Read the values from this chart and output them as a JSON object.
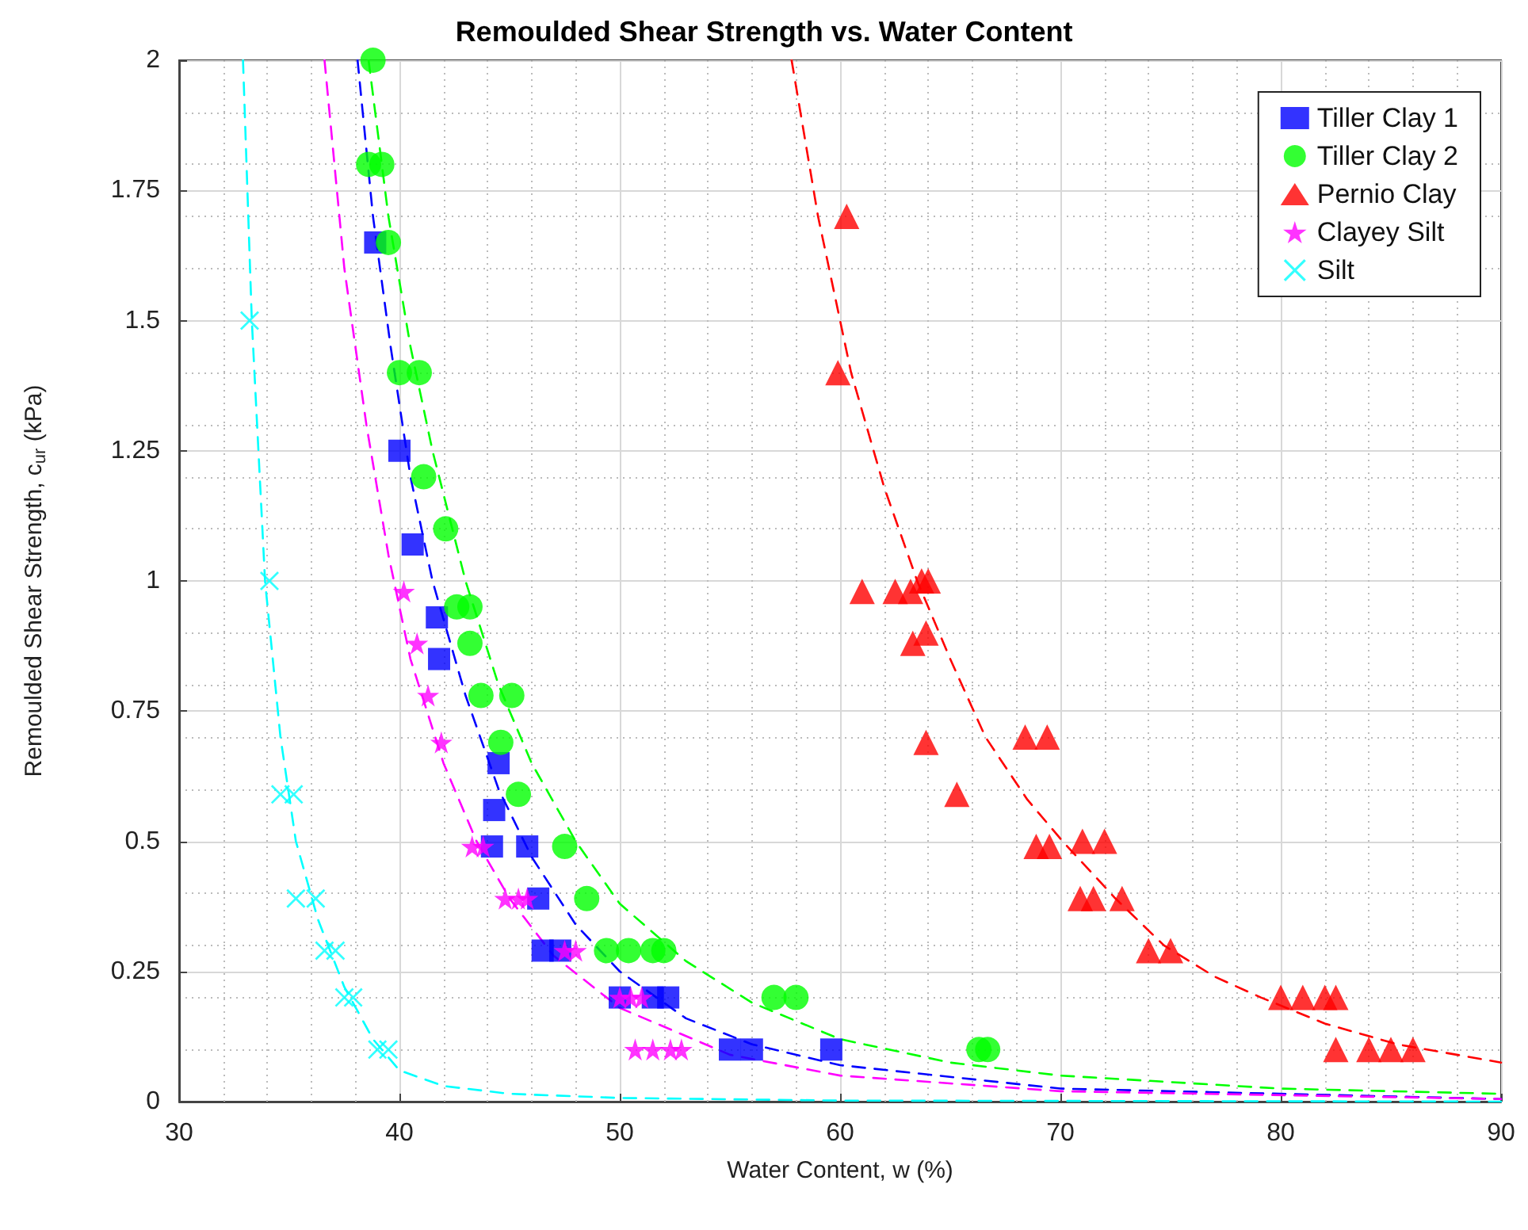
{
  "chart_data": {
    "type": "scatter",
    "title": "Remoulded Shear Strength vs. Water Content",
    "xlabel": "Water Content, w (%)",
    "ylabel": "Remoulded Shear Strength, c$_{ur}$ (kPa)",
    "xlim": [
      30,
      90
    ],
    "xticks": [
      30,
      40,
      50,
      60,
      70,
      80,
      90
    ],
    "ylim": [
      0,
      2
    ],
    "yticks": [
      0,
      0.25,
      0.5,
      0.75,
      1,
      1.25,
      1.5,
      1.75,
      2
    ],
    "grid": true,
    "legend": "top right",
    "series": [
      {
        "name": "Tiller Clay 1",
        "marker": "square",
        "color": "#0000ff",
        "x": [
          38.9,
          40.0,
          40.6,
          41.7,
          41.8,
          44.5,
          44.3,
          44.2,
          45.8,
          46.3,
          46.5,
          47.3,
          50.0,
          51.5,
          52.2,
          55.0,
          56.0,
          59.6
        ],
        "values": [
          1.65,
          1.25,
          1.07,
          0.93,
          0.85,
          0.65,
          0.56,
          0.49,
          0.49,
          0.39,
          0.29,
          0.29,
          0.2,
          0.2,
          0.2,
          0.1,
          0.1,
          0.1
        ]
      },
      {
        "name": "Tiller Clay 2",
        "marker": "circle",
        "color": "#00ff00",
        "x": [
          38.8,
          38.6,
          39.2,
          39.5,
          40.0,
          40.9,
          41.1,
          42.1,
          42.6,
          43.2,
          43.2,
          43.7,
          45.1,
          44.6,
          45.4,
          47.5,
          48.5,
          49.4,
          50.4,
          51.5,
          52.0,
          57.0,
          58.0,
          66.3,
          66.7
        ],
        "values": [
          2.0,
          1.8,
          1.8,
          1.65,
          1.4,
          1.4,
          1.2,
          1.1,
          0.95,
          0.95,
          0.88,
          0.78,
          0.78,
          0.69,
          0.59,
          0.49,
          0.39,
          0.29,
          0.29,
          0.29,
          0.29,
          0.2,
          0.2,
          0.1,
          0.1
        ]
      },
      {
        "name": "Pernio Clay",
        "marker": "triangle",
        "color": "#ff0000",
        "x": [
          60.3,
          59.9,
          61.0,
          62.5,
          63.2,
          63.7,
          64.0,
          63.3,
          63.9,
          63.9,
          65.3,
          68.4,
          69.4,
          68.9,
          69.5,
          71.0,
          72.0,
          70.9,
          71.5,
          72.8,
          74.0,
          75.0,
          80.0,
          81.0,
          82.0,
          82.5,
          82.5,
          84.0,
          85.0,
          86.0
        ],
        "values": [
          1.7,
          1.4,
          0.98,
          0.98,
          0.98,
          1.0,
          1.0,
          0.88,
          0.9,
          0.69,
          0.59,
          0.7,
          0.7,
          0.49,
          0.49,
          0.5,
          0.5,
          0.39,
          0.39,
          0.39,
          0.29,
          0.29,
          0.2,
          0.2,
          0.2,
          0.2,
          0.1,
          0.1,
          0.1,
          0.1
        ]
      },
      {
        "name": "Clayey Silt",
        "marker": "star",
        "color": "#ff00ff",
        "x": [
          40.2,
          40.8,
          41.3,
          41.9,
          43.3,
          43.8,
          44.8,
          45.4,
          45.8,
          47.5,
          48.0,
          50.0,
          50.5,
          51.0,
          50.7,
          51.5,
          52.3,
          52.8
        ],
        "values": [
          0.98,
          0.88,
          0.78,
          0.69,
          0.49,
          0.49,
          0.39,
          0.39,
          0.39,
          0.29,
          0.29,
          0.2,
          0.2,
          0.2,
          0.1,
          0.1,
          0.1,
          0.1
        ]
      },
      {
        "name": "Silt",
        "marker": "cross",
        "color": "#00ffff",
        "x": [
          33.2,
          34.1,
          34.6,
          35.2,
          35.3,
          36.2,
          36.6,
          37.1,
          37.5,
          37.9,
          39.0,
          39.5
        ],
        "values": [
          1.5,
          1.0,
          0.59,
          0.59,
          0.39,
          0.39,
          0.29,
          0.29,
          0.2,
          0.2,
          0.1,
          0.1
        ]
      },
      {
        "type": "line",
        "line_style": "dashed",
        "marker": "none",
        "color": "#0000ff",
        "x": [
          38.1,
          38.8,
          39.6,
          40.5,
          41.5,
          43.0,
          44.5,
          46.0,
          48.0,
          50.0,
          53.0,
          56.0,
          60.0,
          70.0,
          90.0
        ],
        "values": [
          2.0,
          1.7,
          1.45,
          1.2,
          1.0,
          0.78,
          0.6,
          0.47,
          0.34,
          0.25,
          0.16,
          0.11,
          0.07,
          0.025,
          0.005
        ]
      },
      {
        "type": "line",
        "line_style": "dashed",
        "marker": "none",
        "color": "#00ff00",
        "x": [
          38.6,
          39.5,
          40.5,
          41.5,
          43.0,
          44.5,
          46.0,
          48.0,
          50.0,
          53.0,
          56.0,
          60.0,
          65.0,
          70.0,
          80.0,
          90.0
        ],
        "values": [
          2.0,
          1.7,
          1.45,
          1.25,
          1.0,
          0.8,
          0.65,
          0.5,
          0.38,
          0.27,
          0.19,
          0.12,
          0.075,
          0.05,
          0.025,
          0.015
        ]
      },
      {
        "type": "line",
        "line_style": "dashed",
        "marker": "none",
        "color": "#ff0000",
        "x": [
          57.8,
          59.0,
          60.5,
          62.0,
          63.5,
          65.0,
          66.6,
          68.5,
          70.1,
          72.5,
          74.7,
          77.0,
          79.1,
          82.0,
          85.3,
          90.0
        ],
        "values": [
          2.0,
          1.7,
          1.4,
          1.18,
          1.0,
          0.85,
          0.7,
          0.58,
          0.5,
          0.39,
          0.3,
          0.24,
          0.2,
          0.15,
          0.11,
          0.075
        ]
      },
      {
        "type": "line",
        "line_style": "dashed",
        "marker": "none",
        "color": "#ff00ff",
        "x": [
          36.6,
          37.5,
          38.5,
          39.5,
          40.5,
          42.0,
          43.5,
          45.0,
          47.0,
          50.0,
          55.0,
          60.0,
          70.0,
          90.0
        ],
        "values": [
          2.0,
          1.6,
          1.3,
          1.05,
          0.85,
          0.65,
          0.5,
          0.39,
          0.28,
          0.18,
          0.09,
          0.05,
          0.02,
          0.005
        ]
      },
      {
        "type": "line",
        "line_style": "dashed",
        "marker": "none",
        "color": "#00ffff",
        "x": [
          32.9,
          33.3,
          33.9,
          34.6,
          35.3,
          36.3,
          37.5,
          38.8,
          40.0,
          42.0,
          45.0,
          50.0,
          60.0,
          90.0
        ],
        "values": [
          2.0,
          1.5,
          1.0,
          0.7,
          0.5,
          0.35,
          0.22,
          0.12,
          0.06,
          0.03,
          0.015,
          0.007,
          0.002,
          0
        ]
      }
    ]
  }
}
